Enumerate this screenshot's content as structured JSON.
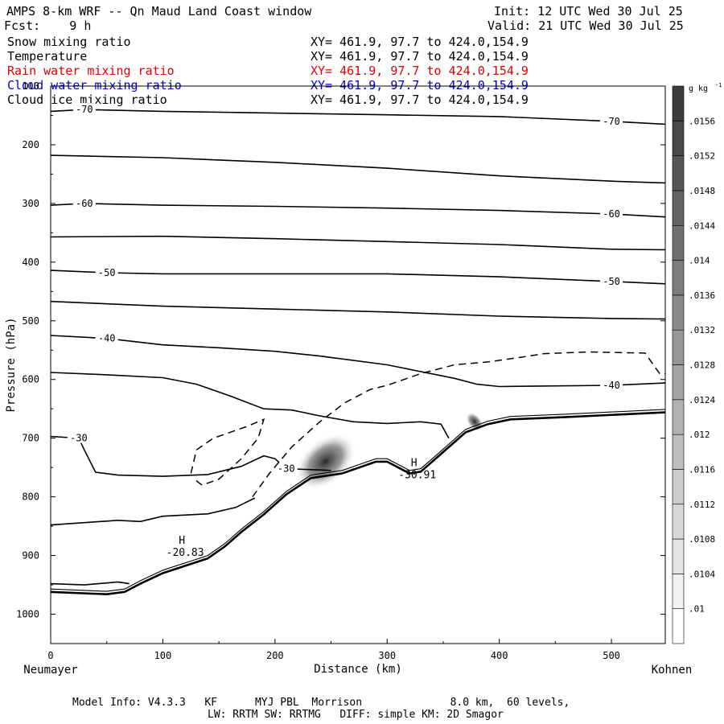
{
  "header": {
    "title": "AMPS 8-km WRF -- Qn Maud Land Coast window",
    "init": "Init: 12 UTC Wed 30 Jul 25",
    "fcst": "Fcst:    9 h",
    "valid": "Valid: 21 UTC Wed 30 Jul 25"
  },
  "fields": [
    {
      "name": "Snow mixing ratio",
      "xy": "XY= 461.9, 97.7 to 424.0,154.9",
      "color": "#000000"
    },
    {
      "name": "Temperature",
      "xy": "XY= 461.9, 97.7 to 424.0,154.9",
      "color": "#000000"
    },
    {
      "name": "Rain water mixing ratio",
      "xy": "XY= 461.9, 97.7 to 424.0,154.9",
      "color": "#e00000"
    },
    {
      "name": "Cloud water mixing ratio",
      "xy": "XY= 461.9, 97.7 to 424.0,154.9",
      "color": "#0000cc"
    },
    {
      "name": "Cloud ice mixing ratio",
      "xy": "XY= 461.9, 97.7 to 424.0,154.9",
      "color": "#000000"
    }
  ],
  "footer": {
    "line1": "Model Info: V4.3.3   KF      MYJ PBL  Morrison              8.0 km,  60 levels,",
    "line2": "LW: RRTM SW: RRTMG   DIFF: simple KM: 2D Smagor"
  },
  "chart_data": {
    "type": "contour",
    "title": "AMPS 8-km WRF -- Qn Maud Land Coast window",
    "xlabel": "Distance (km)",
    "ylabel": "Pressure (hPa)",
    "xlim": [
      0,
      548
    ],
    "ylim": [
      1050,
      100
    ],
    "x_ticks": [
      0,
      100,
      200,
      300,
      400,
      500
    ],
    "y_ticks": [
      100,
      200,
      300,
      400,
      500,
      600,
      700,
      800,
      900,
      1000
    ],
    "x_endpoints": {
      "left": "Neumayer",
      "right": "Kohnen"
    },
    "colorbar": {
      "unit": "g kg",
      "unit_exp": "-1",
      "ticks": [
        ".01",
        ".0104",
        ".0108",
        ".0112",
        ".0116",
        ".012",
        ".0124",
        ".0128",
        ".0132",
        ".0136",
        ".014",
        ".0144",
        ".0148",
        ".0152",
        ".0156"
      ]
    },
    "isotherms": [
      {
        "label": "-70",
        "points": [
          [
            0,
            143
          ],
          [
            30,
            140
          ],
          [
            100,
            143
          ],
          [
            200,
            146
          ],
          [
            300,
            149
          ],
          [
            400,
            152
          ],
          [
            500,
            160
          ],
          [
            548,
            165
          ]
        ]
      },
      {
        "label": "",
        "points": [
          [
            0,
            218
          ],
          [
            100,
            222
          ],
          [
            200,
            230
          ],
          [
            300,
            240
          ],
          [
            400,
            253
          ],
          [
            500,
            262
          ],
          [
            548,
            265
          ]
        ]
      },
      {
        "label": "-60",
        "points": [
          [
            0,
            303
          ],
          [
            30,
            300
          ],
          [
            100,
            303
          ],
          [
            200,
            305
          ],
          [
            300,
            308
          ],
          [
            400,
            312
          ],
          [
            500,
            318
          ],
          [
            548,
            323
          ]
        ]
      },
      {
        "label": "",
        "points": [
          [
            0,
            357
          ],
          [
            100,
            356
          ],
          [
            200,
            360
          ],
          [
            300,
            365
          ],
          [
            400,
            370
          ],
          [
            500,
            378
          ],
          [
            548,
            379
          ]
        ]
      },
      {
        "label": "-50",
        "points": [
          [
            0,
            414
          ],
          [
            50,
            418
          ],
          [
            100,
            420
          ],
          [
            200,
            420
          ],
          [
            300,
            420
          ],
          [
            400,
            425
          ],
          [
            500,
            433
          ],
          [
            548,
            437
          ]
        ]
      },
      {
        "label": "",
        "points": [
          [
            0,
            467
          ],
          [
            100,
            475
          ],
          [
            200,
            480
          ],
          [
            300,
            485
          ],
          [
            400,
            492
          ],
          [
            500,
            496
          ],
          [
            548,
            497
          ]
        ]
      },
      {
        "label": "-40",
        "points": [
          [
            0,
            525
          ],
          [
            50,
            530
          ],
          [
            100,
            541
          ],
          [
            150,
            546
          ],
          [
            200,
            552
          ],
          [
            240,
            560
          ],
          [
            300,
            575
          ],
          [
            360,
            598
          ],
          [
            380,
            608
          ],
          [
            400,
            612
          ],
          [
            500,
            610
          ],
          [
            548,
            606
          ]
        ]
      },
      {
        "label": "",
        "points": [
          [
            0,
            588
          ],
          [
            50,
            592
          ],
          [
            100,
            597
          ],
          [
            130,
            608
          ],
          [
            160,
            628
          ],
          [
            190,
            650
          ],
          [
            215,
            652
          ],
          [
            240,
            662
          ],
          [
            270,
            672
          ],
          [
            300,
            675
          ],
          [
            330,
            672
          ],
          [
            348,
            676
          ],
          [
            355,
            700
          ]
        ]
      },
      {
        "label": "-30",
        "points": [
          [
            0,
            697
          ],
          [
            25,
            700
          ],
          [
            30,
            720
          ],
          [
            40,
            758
          ],
          [
            60,
            763
          ],
          [
            100,
            765
          ],
          [
            140,
            762
          ],
          [
            170,
            748
          ],
          [
            190,
            730
          ],
          [
            200,
            735
          ],
          [
            210,
            752
          ],
          [
            250,
            755
          ]
        ]
      },
      {
        "label": "",
        "points": [
          [
            0,
            848
          ],
          [
            30,
            844
          ],
          [
            60,
            840
          ],
          [
            80,
            842
          ],
          [
            100,
            833
          ],
          [
            140,
            829
          ],
          [
            165,
            818
          ],
          [
            182,
            802
          ]
        ]
      },
      {
        "label": "",
        "points": [
          [
            0,
            948
          ],
          [
            30,
            950
          ],
          [
            60,
            945
          ],
          [
            70,
            948
          ]
        ]
      }
    ],
    "lows_highs": [
      {
        "label": "H",
        "value": "-20.83",
        "x": 117,
        "y": 880
      },
      {
        "label": "H",
        "value": "-30.91",
        "x": 324,
        "y": 748
      }
    ],
    "terrain": [
      [
        0,
        962
      ],
      [
        50,
        966
      ],
      [
        66,
        962
      ],
      [
        80,
        948
      ],
      [
        100,
        930
      ],
      [
        140,
        905
      ],
      [
        155,
        885
      ],
      [
        170,
        860
      ],
      [
        190,
        830
      ],
      [
        210,
        796
      ],
      [
        232,
        768
      ],
      [
        260,
        760
      ],
      [
        275,
        750
      ],
      [
        290,
        740
      ],
      [
        300,
        740
      ],
      [
        310,
        750
      ],
      [
        320,
        760
      ],
      [
        330,
        757
      ],
      [
        345,
        732
      ],
      [
        370,
        690
      ],
      [
        390,
        676
      ],
      [
        410,
        668
      ],
      [
        460,
        664
      ],
      [
        548,
        656
      ]
    ],
    "snow_shading": [
      {
        "x": 245,
        "y": 740,
        "value": 0.0156
      },
      {
        "x": 378,
        "y": 672,
        "value": 0.0124
      }
    ]
  }
}
